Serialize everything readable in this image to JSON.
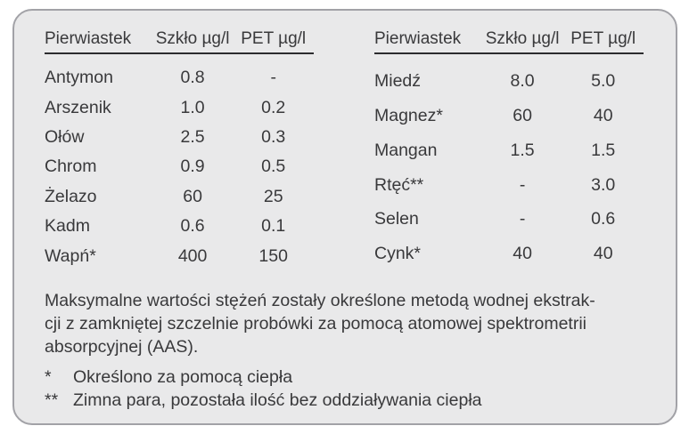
{
  "panel": {
    "background_color": "#e9e9ea",
    "border_color": "#a2a2a7",
    "text_color": "#39393b"
  },
  "tables": [
    {
      "headers": [
        "Pierwiastek",
        "Szkło µg/l",
        "PET µg/l"
      ],
      "rows": [
        [
          "Antymon",
          "0.8",
          "-"
        ],
        [
          "Arszenik",
          "1.0",
          "0.2"
        ],
        [
          "Ołów",
          "2.5",
          "0.3"
        ],
        [
          "Chrom",
          "0.9",
          "0.5"
        ],
        [
          "Żelazo",
          "60",
          "25"
        ],
        [
          "Kadm",
          "0.6",
          "0.1"
        ],
        [
          "Wapń*",
          "400",
          "150"
        ]
      ]
    },
    {
      "headers": [
        "Pierwiastek",
        "Szkło µg/l",
        "PET µg/l"
      ],
      "rows": [
        [
          "Miedź",
          "8.0",
          "5.0"
        ],
        [
          "Magnez*",
          "60",
          "40"
        ],
        [
          "Mangan",
          "1.5",
          "1.5"
        ],
        [
          "Rtęć**",
          "-",
          "3.0"
        ],
        [
          "Selen",
          "-",
          "0.6"
        ],
        [
          "Cynk*",
          "40",
          "40"
        ]
      ]
    }
  ],
  "paragraph_lines": [
    "Maksymalne wartości stężeń zostały określone metodą wodnej ekstrak-",
    "cji z zamkniętej szczelnie probówki za pomocą atomowej spektrometrii",
    "absorpcyjnej (AAS)."
  ],
  "footnotes": [
    {
      "marker": "*",
      "text": "Określono za pomocą ciepła"
    },
    {
      "marker": "**",
      "text": "Zimna para, pozostała ilość bez oddziaływania ciepła"
    }
  ]
}
